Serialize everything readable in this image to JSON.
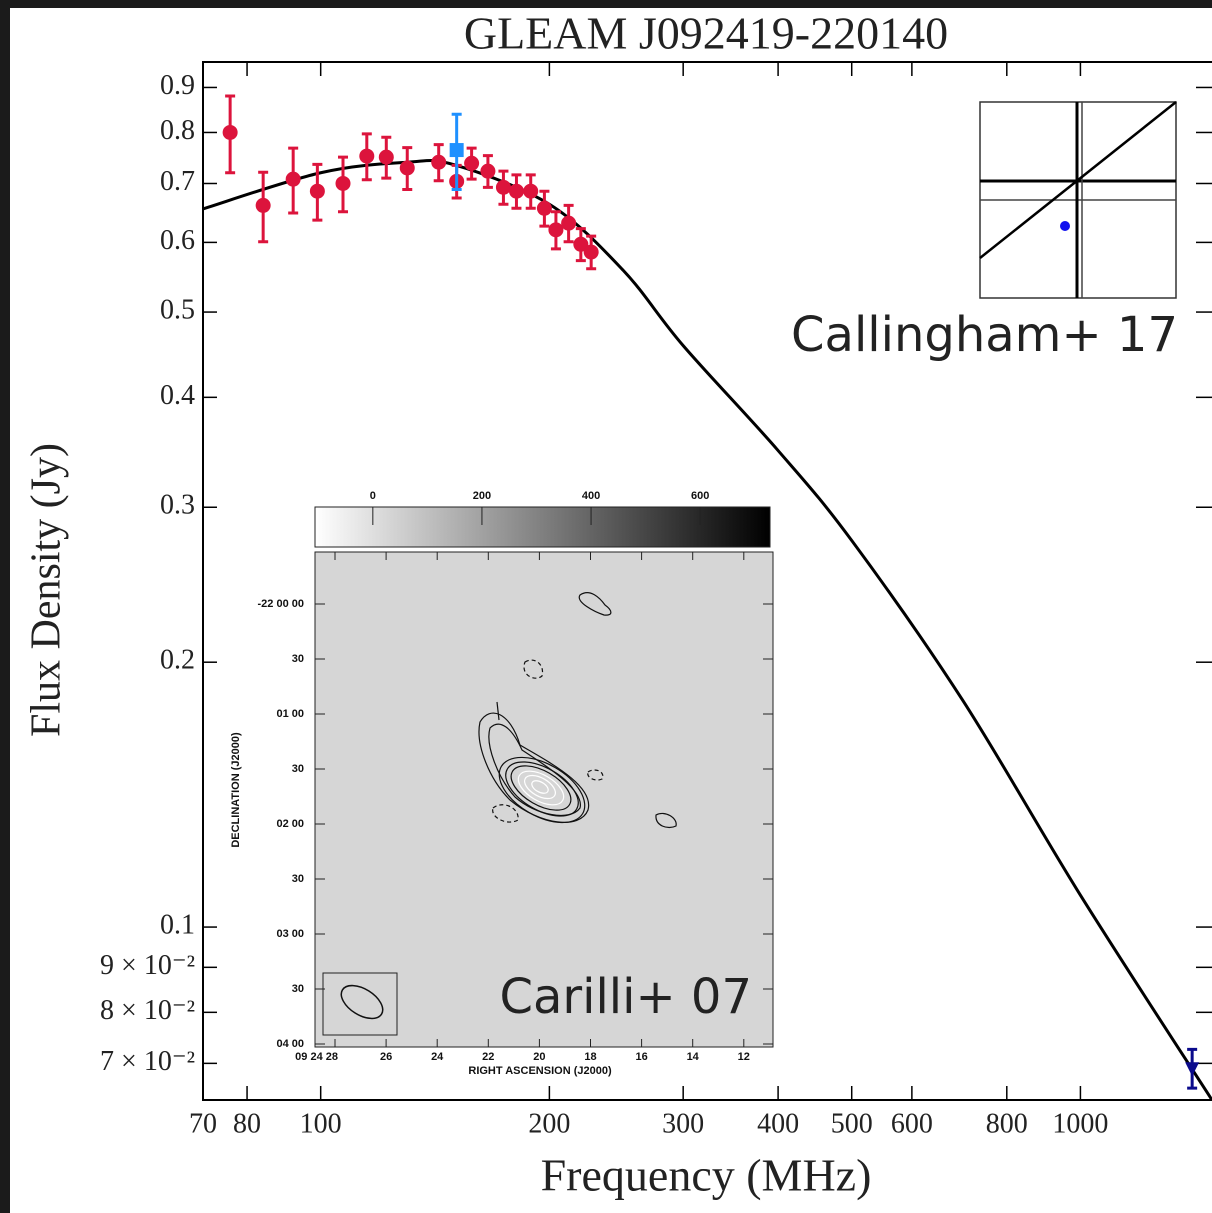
{
  "chart_data": {
    "type": "scatter",
    "title": "GLEAM J092419-220140",
    "xlabel": "Frequency (MHz)",
    "ylabel": "Flux Density (Jy)",
    "xlog": true,
    "ylog": true,
    "xlim": [
      70,
      1490
    ],
    "ylim": [
      0.0636,
      0.962
    ],
    "xticks": [
      70,
      80,
      100,
      200,
      300,
      400,
      500,
      600,
      800,
      1000
    ],
    "yticks": [
      {
        "value": 0.07,
        "label": "7 × 10⁻²"
      },
      {
        "value": 0.08,
        "label": "8 × 10⁻²"
      },
      {
        "value": 0.09,
        "label": "9 × 10⁻²"
      },
      0.1,
      0.2,
      0.3,
      0.4,
      0.5,
      0.6,
      0.7,
      0.8,
      0.9
    ],
    "series": [
      {
        "color": "#dc143c",
        "marker": "circle",
        "x": [
          76,
          84,
          92,
          99,
          107,
          115,
          122,
          130,
          143,
          151,
          158,
          166,
          174,
          181,
          189,
          197,
          204,
          212,
          220,
          227
        ],
        "values": [
          0.8,
          0.661,
          0.708,
          0.686,
          0.7,
          0.752,
          0.75,
          0.729,
          0.74,
          0.704,
          0.738,
          0.723,
          0.693,
          0.686,
          0.686,
          0.656,
          0.62,
          0.631,
          0.597,
          0.585
        ],
        "errors": [
          0.08,
          0.06,
          0.06,
          0.05,
          0.05,
          0.045,
          0.04,
          0.04,
          0.035,
          0.03,
          0.03,
          0.03,
          0.03,
          0.03,
          0.03,
          0.03,
          0.03,
          0.03,
          0.025,
          0.025
        ]
      },
      {
        "color": "#1e90ff",
        "marker": "square",
        "x": [
          151
        ],
        "values": [
          0.764
        ],
        "errors": [
          0.075
        ]
      },
      {
        "color": "#0a0a8c",
        "marker": "triangle",
        "x": [
          1403
        ],
        "values": [
          0.0691
        ],
        "errors": [
          0.0035
        ]
      }
    ],
    "fit": {
      "color": "#000000",
      "x": [
        70,
        100,
        130,
        150,
        200,
        250,
        300,
        400,
        500,
        700,
        1000,
        1490
      ],
      "values": [
        0.655,
        0.72,
        0.74,
        0.735,
        0.663,
        0.558,
        0.458,
        0.348,
        0.275,
        0.181,
        0.1087,
        0.0636
      ]
    },
    "insets": [
      {
        "annotation": "Callingham+ 17"
      },
      {
        "annotation": "Carilli+ 07",
        "colorbar_lim": [
          -106,
          728
        ],
        "colorbar_ticks": [
          0,
          200,
          400,
          600
        ],
        "ra_ticks": [
          "09 24 28",
          "26",
          "24",
          "22",
          "20",
          "18",
          "16",
          "14",
          "12"
        ],
        "dec_ticks": [
          "-22 00 00",
          "30",
          "01 00",
          "30",
          "02 00",
          "30",
          "03 00",
          "30",
          "04 00"
        ],
        "xlabel": "RIGHT ASCENSION (J2000)",
        "ylabel": "DECLINATION (J2000)"
      }
    ]
  }
}
